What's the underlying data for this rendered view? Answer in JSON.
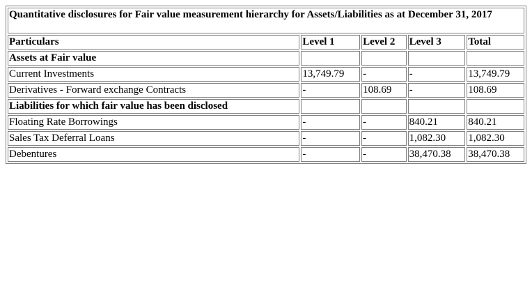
{
  "table": {
    "title": "Quantitative disclosures for Fair value measurement hierarchy for Assets/Liabilities as at December 31, 2017",
    "headers": [
      "Particulars",
      "Level 1",
      "Level 2",
      "Level 3",
      "Total"
    ],
    "rows": [
      {
        "type": "section",
        "cells": [
          "Assets at Fair value",
          "",
          "",
          "",
          ""
        ]
      },
      {
        "type": "data",
        "cells": [
          "Current Investments",
          "13,749.79",
          "-",
          "-",
          "13,749.79"
        ]
      },
      {
        "type": "data",
        "cells": [
          "Derivatives - Forward exchange Contracts",
          "-",
          "108.69",
          "-",
          "108.69"
        ]
      },
      {
        "type": "section",
        "cells": [
          "Liabilities for which fair value has been disclosed",
          "",
          "",
          "",
          ""
        ]
      },
      {
        "type": "data",
        "cells": [
          "Floating Rate Borrowings",
          "-",
          "-",
          "840.21",
          "840.21"
        ]
      },
      {
        "type": "data",
        "cells": [
          "Sales Tax Deferral Loans",
          "-",
          "-",
          "1,082.30",
          "1,082.30"
        ]
      },
      {
        "type": "data",
        "cells": [
          "Debentures",
          "-",
          "-",
          "38,470.38",
          "38,470.38"
        ]
      }
    ]
  }
}
